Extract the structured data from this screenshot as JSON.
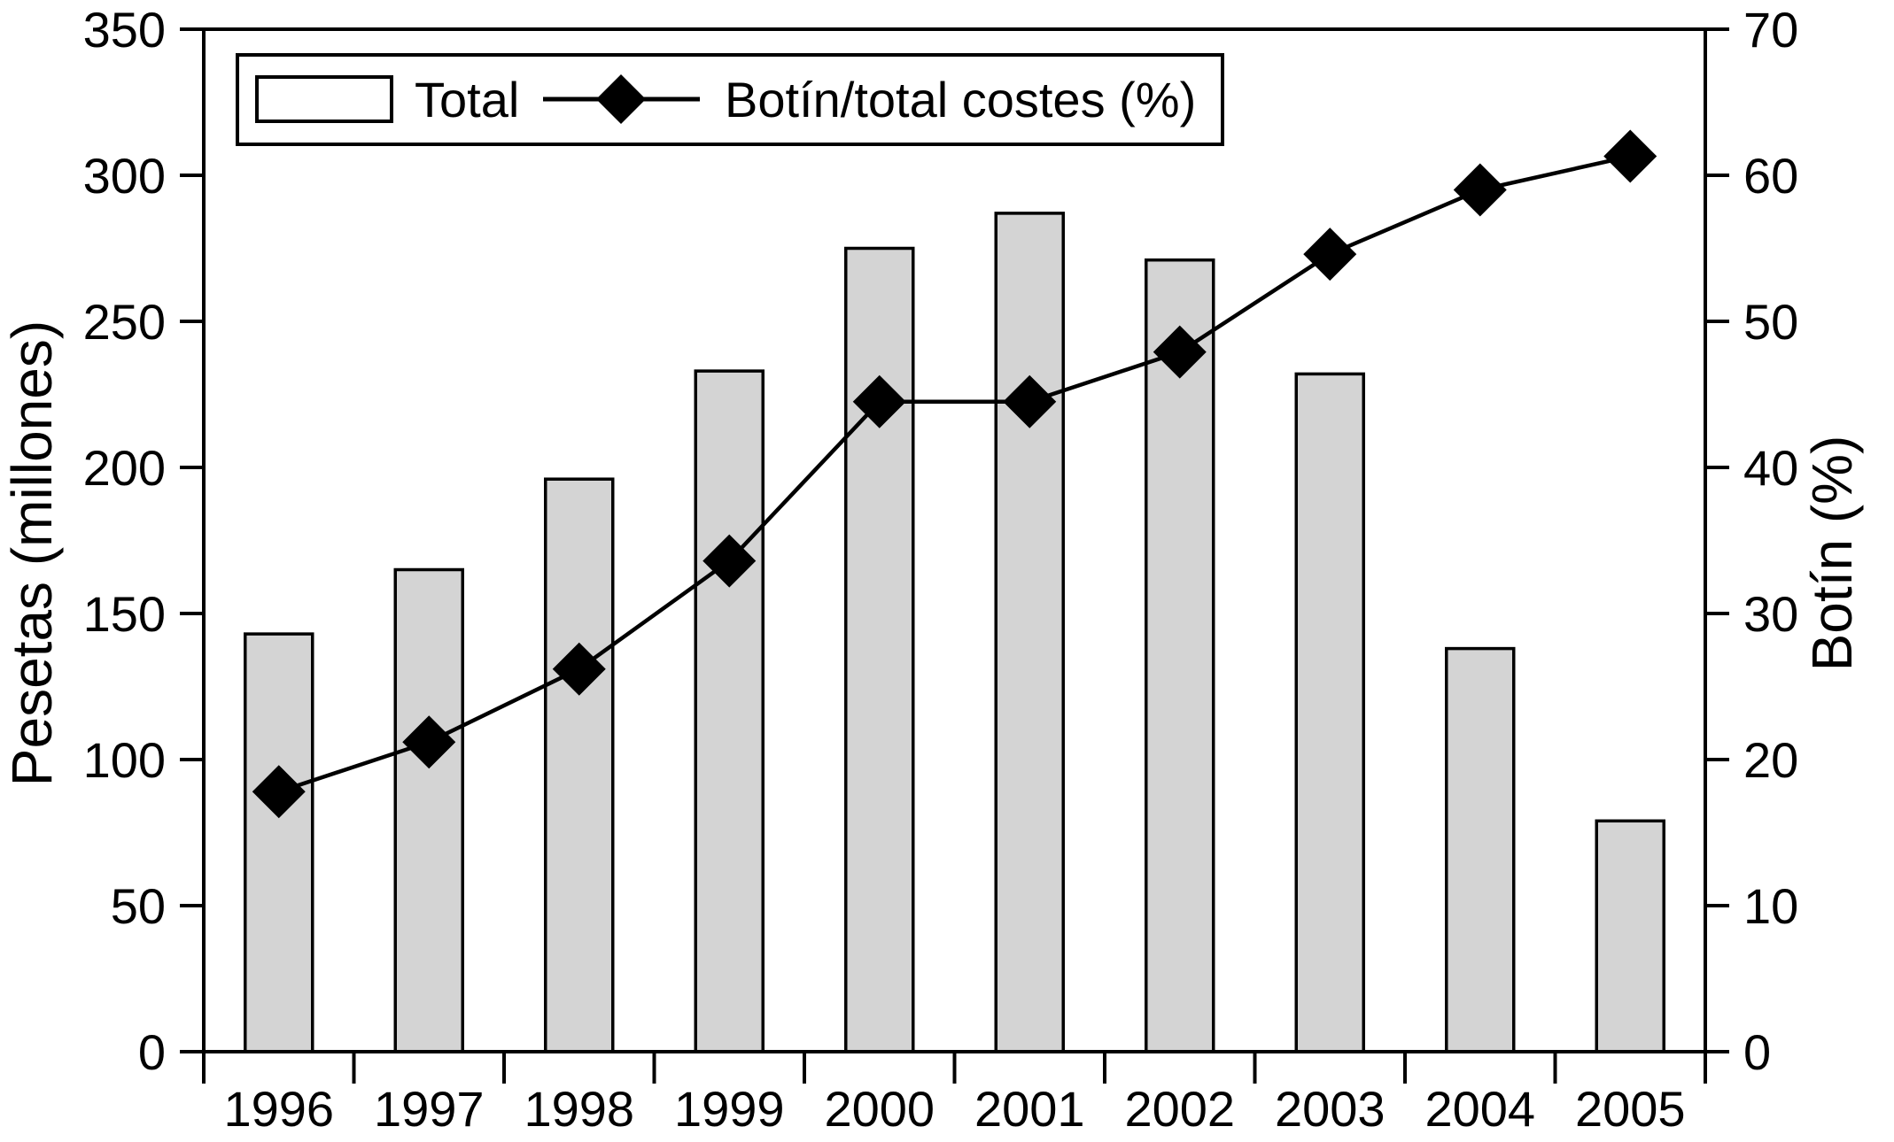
{
  "page": {
    "background": "#ffffff",
    "text_color": "#000000"
  },
  "chart_data": {
    "type": "bar+line",
    "title": "",
    "categories": [
      "1996",
      "1997",
      "1998",
      "1999",
      "2000",
      "2001",
      "2002",
      "2003",
      "2004",
      "2005"
    ],
    "series": [
      {
        "name": "Total",
        "type": "bar",
        "axis": "left",
        "fill": "#d4d4d4",
        "stroke": "#000000",
        "values": [
          143,
          165,
          196,
          233,
          275,
          287,
          271,
          232,
          138,
          79
        ]
      },
      {
        "name": "Botín/total costes (%)",
        "type": "line",
        "axis": "right",
        "marker": "diamond",
        "color": "#000000",
        "values": [
          17.8,
          21.2,
          26.2,
          33.6,
          44.5,
          44.5,
          47.9,
          54.6,
          59.0,
          61.3
        ]
      }
    ],
    "left_axis": {
      "label": "Pesetas (millones)",
      "min": 0,
      "max": 350,
      "ticks": [
        0,
        50,
        100,
        150,
        200,
        250,
        300,
        350
      ]
    },
    "right_axis": {
      "label": "Botín (%)",
      "min": 0,
      "max": 70,
      "ticks": [
        0,
        10,
        20,
        30,
        40,
        50,
        60,
        70
      ]
    },
    "x_axis": {
      "tick_style": "category-boundaries"
    },
    "legend": {
      "position": "top-left",
      "entries": [
        "Total",
        "Botín/total costes (%)"
      ]
    },
    "grid": false,
    "plot_background": "#ffffff"
  }
}
